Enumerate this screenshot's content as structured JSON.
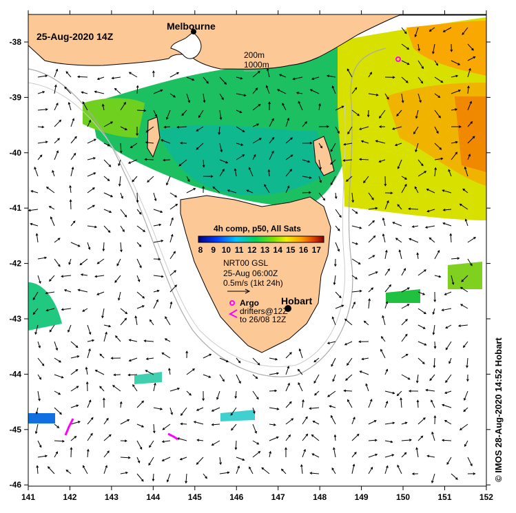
{
  "title": "25-Aug-2020 14Z",
  "credit": "© IMOS 28-Aug-2020 14:52 Hobart",
  "places": {
    "melbourne": "Melbourne",
    "hobart": "Hobart"
  },
  "isobaths": {
    "shallow": "200m",
    "deep": "1000m"
  },
  "legend": {
    "title": "4h comp, p50, All Sats",
    "ticks": [
      "8",
      "9",
      "10",
      "11",
      "12",
      "13",
      "14",
      "15",
      "16",
      "17"
    ],
    "currents_source": "NRT00 GSL",
    "currents_time": "25-Aug 06:00Z",
    "scale": "0.5m/s (1kt 24h)",
    "argo": "Argo",
    "drifters": "drifters@12Z",
    "drifters_to": "to 26/08 12Z"
  },
  "axes": {
    "x_ticks": [
      "141",
      "142",
      "143",
      "144",
      "145",
      "146",
      "147",
      "148",
      "149",
      "150",
      "151",
      "152"
    ],
    "y_ticks": [
      "-38",
      "-39",
      "-40",
      "-41",
      "-42",
      "-43",
      "-44",
      "-45",
      "-46"
    ]
  },
  "colors": {
    "land": "#fcc896",
    "argo": "#ff00ff",
    "sea": "#ffffff"
  }
}
